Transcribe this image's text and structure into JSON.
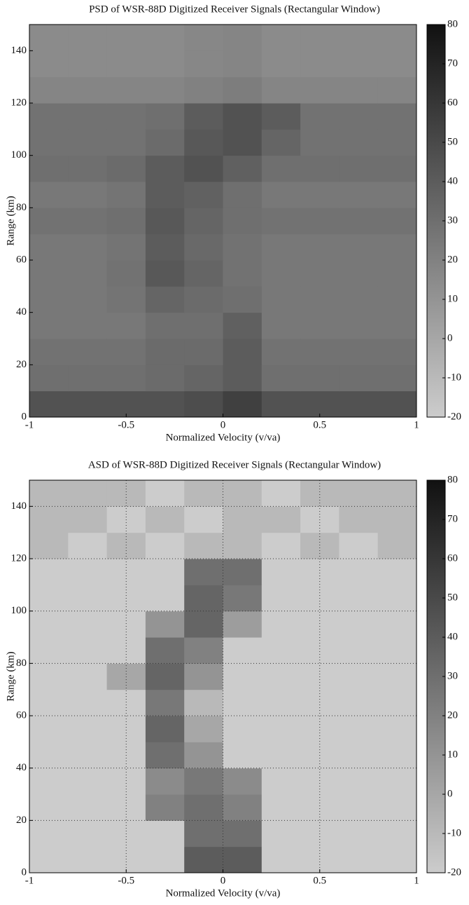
{
  "chart_data": [
    {
      "type": "heatmap",
      "title": "PSD of WSR-88D Digitized Receiver Signals (Rectangular Window)",
      "x_label": "Normalized Velocity (v/va)",
      "y_label": "Range (km)",
      "x": [
        -0.9,
        -0.7,
        -0.5,
        -0.3,
        -0.1,
        0.1,
        0.3,
        0.5,
        0.7,
        0.9
      ],
      "y": [
        5,
        15,
        25,
        35,
        45,
        55,
        65,
        75,
        85,
        95,
        105,
        115,
        125,
        135,
        145
      ],
      "z": [
        [
          45,
          45,
          45,
          45,
          48,
          55,
          45,
          45,
          45,
          45
        ],
        [
          30,
          30,
          30,
          32,
          35,
          40,
          30,
          30,
          30,
          30
        ],
        [
          28,
          28,
          28,
          32,
          32,
          40,
          28,
          28,
          28,
          28
        ],
        [
          25,
          25,
          25,
          30,
          30,
          38,
          25,
          25,
          25,
          25
        ],
        [
          25,
          25,
          27,
          35,
          32,
          30,
          25,
          25,
          25,
          25
        ],
        [
          25,
          25,
          28,
          42,
          35,
          28,
          25,
          25,
          25,
          25
        ],
        [
          25,
          25,
          27,
          40,
          33,
          28,
          25,
          25,
          25,
          25
        ],
        [
          28,
          28,
          30,
          42,
          35,
          30,
          28,
          28,
          28,
          28
        ],
        [
          25,
          25,
          27,
          40,
          37,
          30,
          25,
          25,
          25,
          25
        ],
        [
          30,
          30,
          32,
          40,
          45,
          38,
          30,
          30,
          30,
          30
        ],
        [
          28,
          28,
          28,
          32,
          42,
          45,
          35,
          28,
          28,
          28
        ],
        [
          28,
          28,
          28,
          30,
          40,
          45,
          40,
          28,
          28,
          28
        ],
        [
          18,
          18,
          18,
          18,
          20,
          22,
          18,
          18,
          18,
          18
        ],
        [
          15,
          15,
          15,
          15,
          17,
          18,
          15,
          15,
          15,
          15
        ],
        [
          15,
          15,
          15,
          15,
          17,
          18,
          15,
          15,
          15,
          15
        ]
      ],
      "xlim": [
        -1,
        1
      ],
      "xticks": [
        -1,
        -0.5,
        0,
        0.5,
        1
      ],
      "ylim": [
        0,
        150
      ],
      "yticks": [
        0,
        20,
        40,
        60,
        80,
        100,
        120,
        140
      ],
      "clim": [
        -20,
        80
      ],
      "cticks": [
        -20,
        -10,
        0,
        10,
        20,
        30,
        40,
        50,
        60,
        70,
        80
      ],
      "colormap": [
        "#cccccc",
        "#111111"
      ],
      "grid": false
    },
    {
      "type": "heatmap",
      "title": "ASD of WSR-88D Digitized Receiver Signals (Rectangular Window)",
      "x_label": "Normalized Velocity (v/va)",
      "y_label": "Range (km)",
      "x": [
        -0.9,
        -0.7,
        -0.5,
        -0.3,
        -0.1,
        0.1,
        0.3,
        0.5,
        0.7,
        0.9
      ],
      "y": [
        5,
        15,
        25,
        35,
        45,
        55,
        65,
        75,
        85,
        95,
        105,
        115,
        125,
        135,
        145
      ],
      "z": [
        [
          -20,
          -20,
          -20,
          -20,
          40,
          40,
          -20,
          -20,
          -20,
          -20
        ],
        [
          -20,
          -20,
          -20,
          -20,
          30,
          30,
          -20,
          -20,
          -20,
          -20
        ],
        [
          -20,
          -20,
          -20,
          20,
          30,
          20,
          -20,
          -20,
          -20,
          -20
        ],
        [
          -20,
          -20,
          -20,
          15,
          25,
          15,
          -20,
          -20,
          -20,
          -20
        ],
        [
          -20,
          -20,
          -20,
          30,
          10,
          -20,
          -20,
          -20,
          -20,
          -20
        ],
        [
          -20,
          -20,
          -20,
          35,
          0,
          -20,
          -20,
          -20,
          -20,
          -20
        ],
        [
          -20,
          -20,
          -20,
          25,
          -10,
          -20,
          -20,
          -20,
          -20,
          -20
        ],
        [
          -20,
          -20,
          0,
          35,
          10,
          -20,
          -20,
          -20,
          -20,
          -20
        ],
        [
          -20,
          -20,
          -20,
          30,
          20,
          -20,
          -20,
          -20,
          -20,
          -20
        ],
        [
          -20,
          -20,
          -20,
          10,
          35,
          5,
          -20,
          -20,
          -20,
          -20
        ],
        [
          -20,
          -20,
          -20,
          -20,
          35,
          25,
          -20,
          -20,
          -20,
          -20
        ],
        [
          -20,
          -20,
          -20,
          -20,
          30,
          30,
          -20,
          -20,
          -20,
          -20
        ],
        [
          -10,
          -20,
          -10,
          -20,
          -10,
          -10,
          -20,
          -10,
          -20,
          -10
        ],
        [
          -10,
          -10,
          -20,
          -10,
          -20,
          -10,
          -10,
          -20,
          -10,
          -10
        ],
        [
          -10,
          -10,
          -10,
          -20,
          -10,
          -10,
          -20,
          -10,
          -10,
          -10
        ]
      ],
      "xlim": [
        -1,
        1
      ],
      "xticks": [
        -1,
        -0.5,
        0,
        0.5,
        1
      ],
      "ylim": [
        0,
        150
      ],
      "yticks": [
        0,
        20,
        40,
        60,
        80,
        100,
        120,
        140
      ],
      "clim": [
        -20,
        80
      ],
      "cticks": [
        -20,
        -10,
        0,
        10,
        20,
        30,
        40,
        50,
        60,
        70,
        80
      ],
      "colormap": [
        "#cccccc",
        "#111111"
      ],
      "grid": true
    }
  ]
}
